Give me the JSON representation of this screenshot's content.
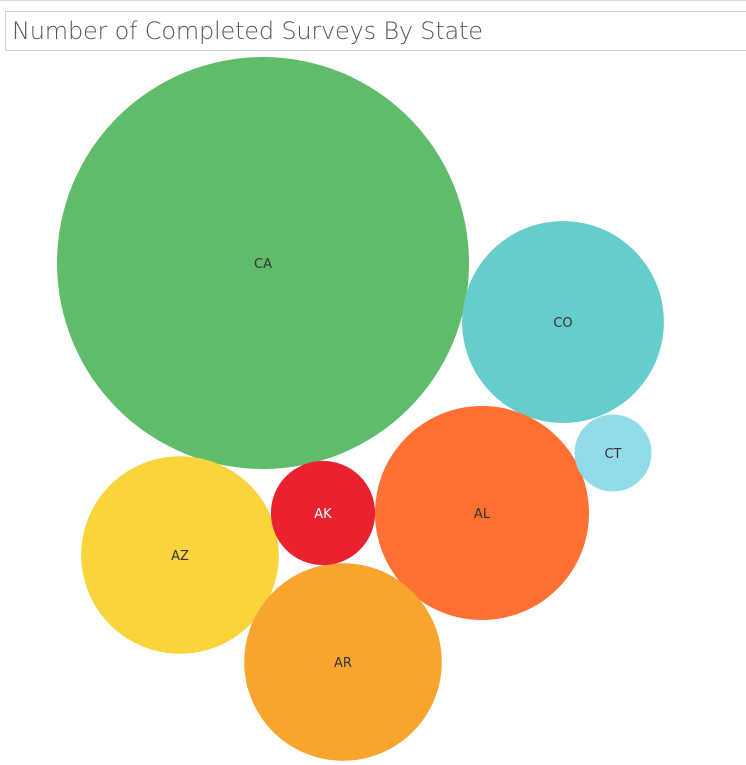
{
  "title": "Number of Completed Surveys By State",
  "chart_data": {
    "type": "bubble",
    "title": "Number of Completed Surveys By State",
    "size_encodes": "Number of Completed Surveys",
    "label_field": "State",
    "bubbles": [
      {
        "label": "CA",
        "value": 100,
        "color": "#5fbc6a"
      },
      {
        "label": "CO",
        "value": 24,
        "color": "#65cdcc"
      },
      {
        "label": "AL",
        "value": 27,
        "color": "#ff7032"
      },
      {
        "label": "AZ",
        "value": 23,
        "color": "#fad43b"
      },
      {
        "label": "AR",
        "value": 23,
        "color": "#f9a52d"
      },
      {
        "label": "AK",
        "value": 6.4,
        "color": "#ea212f"
      },
      {
        "label": "CT",
        "value": 3.5,
        "color": "#92dcea"
      }
    ]
  }
}
